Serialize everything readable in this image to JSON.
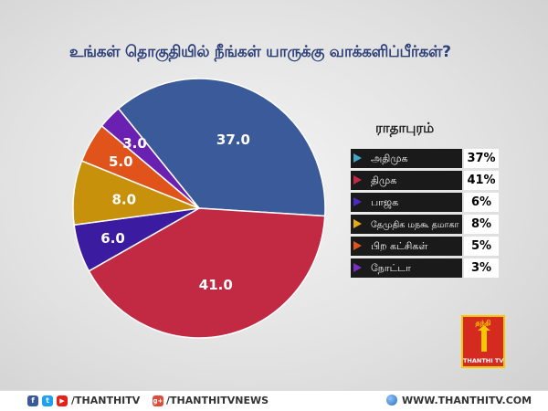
{
  "title": "உங்கள் தொகுதியில் நீங்கள் யாருக்கு வாக்களிப்பீர்கள்?",
  "constituency": "ராதாபுரம்",
  "chart_data": {
    "type": "pie",
    "title": "உங்கள் தொகுதியில் நீங்கள் யாருக்கு வாக்களிப்பீர்கள்?",
    "slices": [
      {
        "label": "அதிமுக",
        "value": 37.0,
        "display": "37.0",
        "color": "#3a5a9a"
      },
      {
        "label": "திமுக",
        "value": 41.0,
        "display": "41.0",
        "color": "#c22a44"
      },
      {
        "label": "பாஜக",
        "value": 6.0,
        "display": "6.0",
        "color": "#3b1ca0"
      },
      {
        "label": "தேமுதிக மநகூ தமாகா",
        "value": 8.0,
        "display": "8.0",
        "color": "#c8910c"
      },
      {
        "label": "பிற கட்சிகள்",
        "value": 5.0,
        "display": "5.0",
        "color": "#e0541c"
      },
      {
        "label": "நோட்டா",
        "value": 3.0,
        "display": "3.0",
        "color": "#6a20b0"
      }
    ]
  },
  "legend": [
    {
      "label": "அதிமுக",
      "pct": "37%",
      "marker": "#3fa6c8"
    },
    {
      "label": "திமுக",
      "pct": "41%",
      "marker": "#c22a44"
    },
    {
      "label": "பாஜக",
      "pct": "6%",
      "marker": "#4b2ac0"
    },
    {
      "label": "தேமுதிக மநகூ தமாகா",
      "pct": "8%",
      "marker": "#e5a81a"
    },
    {
      "label": "பிற கட்சிகள்",
      "pct": "5%",
      "marker": "#e0541c"
    },
    {
      "label": "நோட்டா",
      "pct": "3%",
      "marker": "#7a30c0"
    }
  ],
  "logo": {
    "top_text": "தந்தி",
    "bottom_text": "THANTHI TV"
  },
  "footer": {
    "facebook_handle": "/THANTHITV",
    "gplus_handle": "/THANTHITVNEWS",
    "website": "WWW.THANTHITV.COM",
    "facebook_icon": "f",
    "twitter_icon": "t",
    "youtube_icon": "▶",
    "gplus_icon": "g+"
  }
}
